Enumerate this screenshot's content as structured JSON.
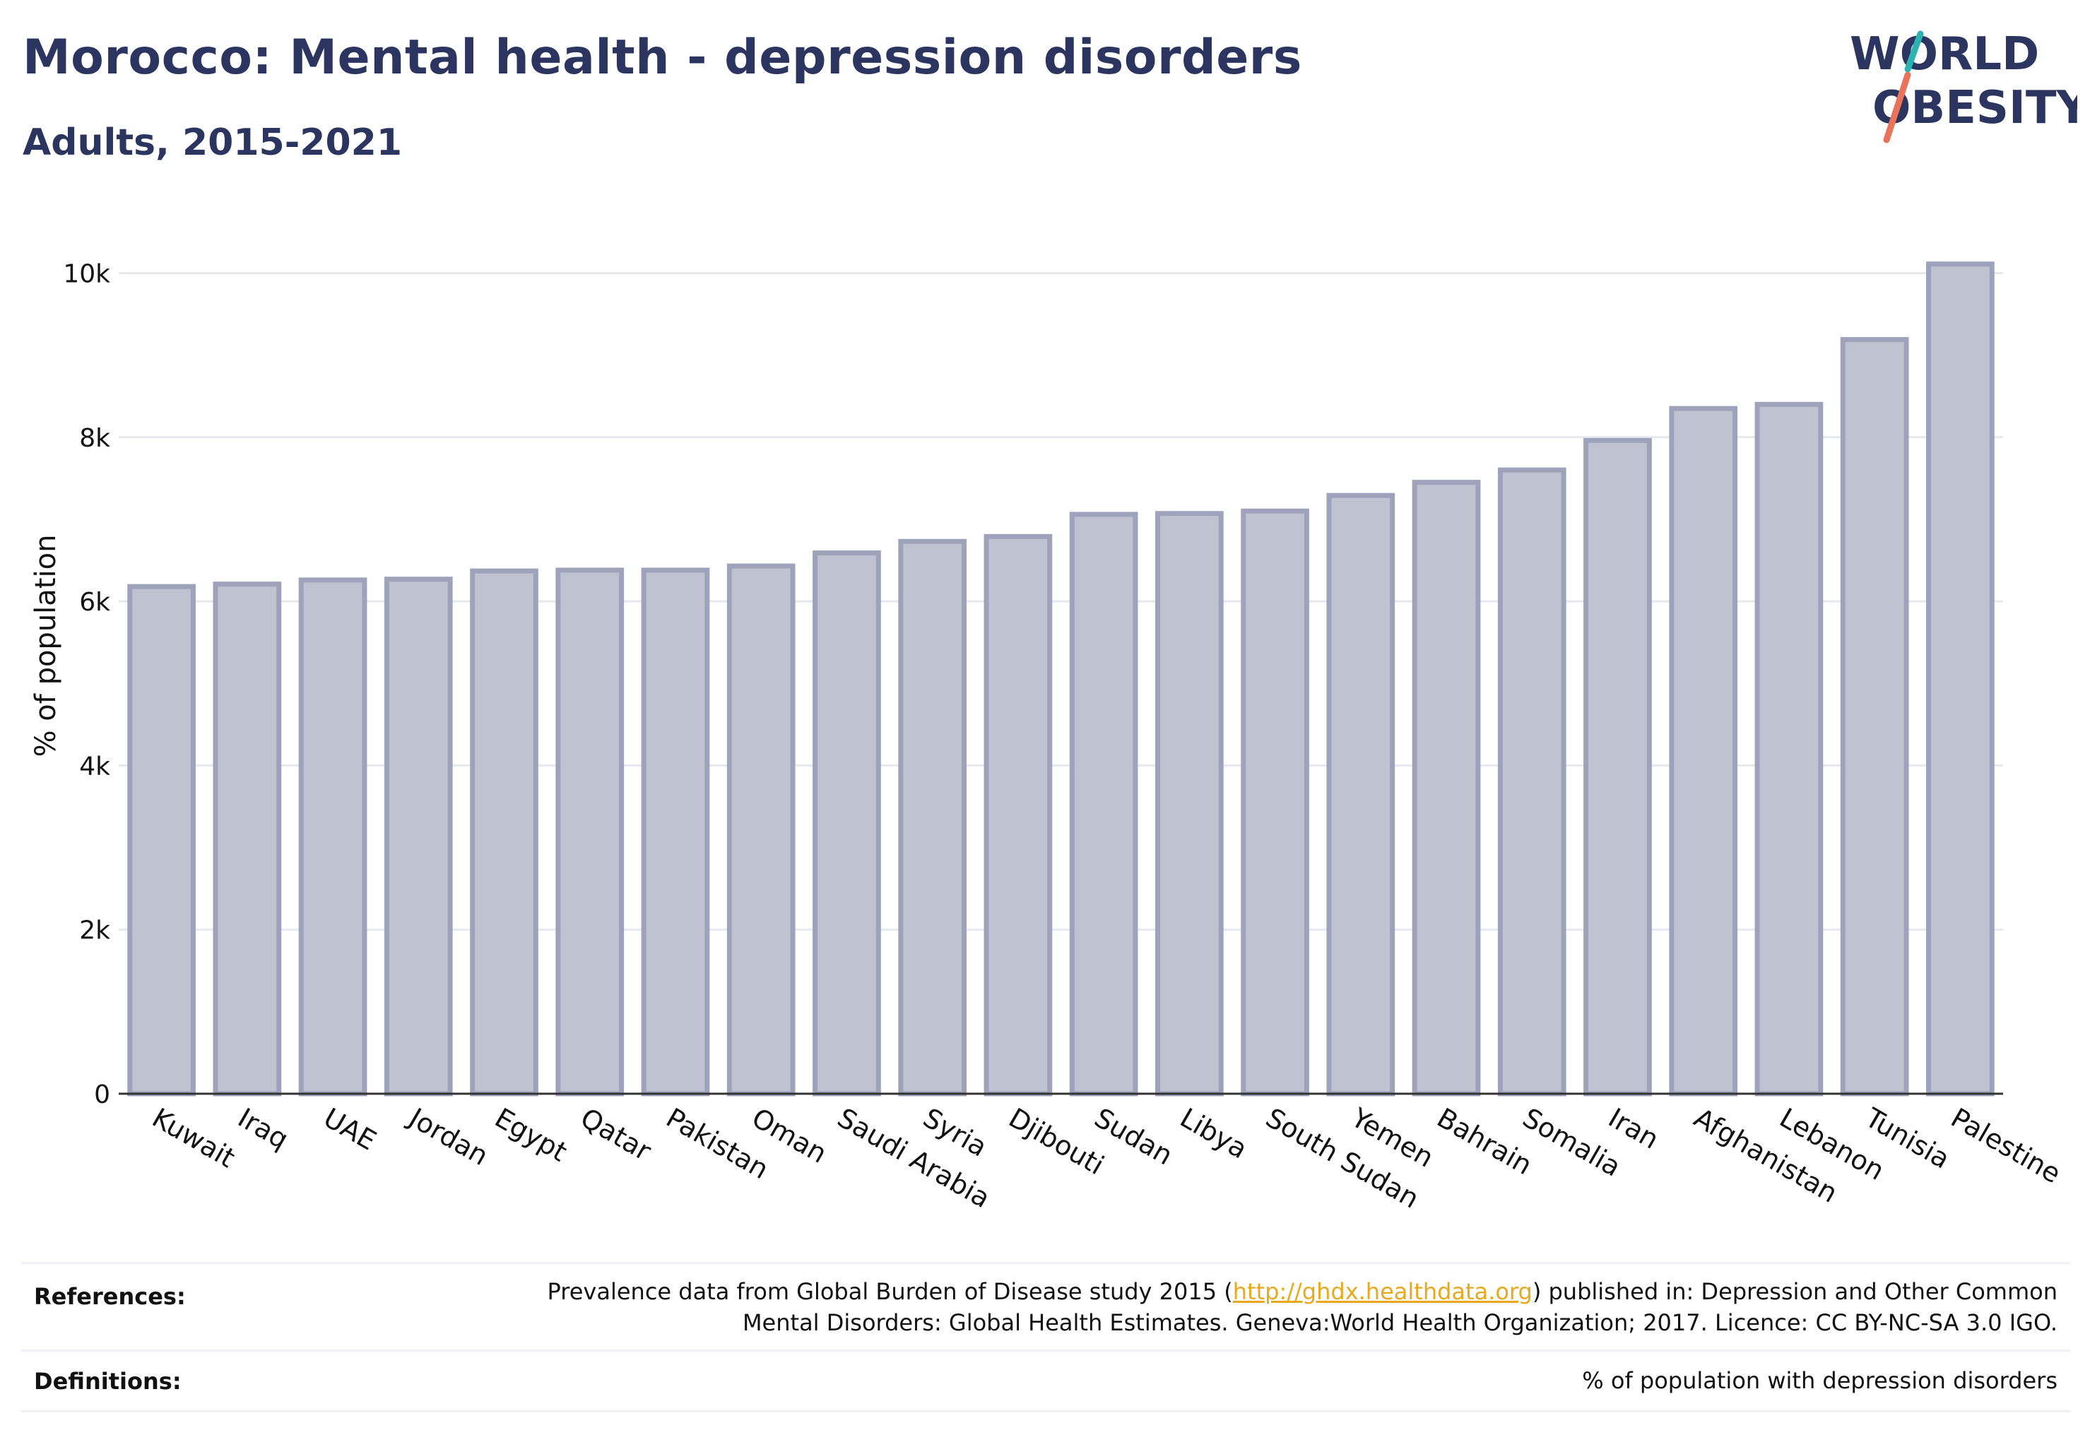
{
  "header": {
    "title": "Morocco: Mental health - depression disorders",
    "subtitle": "Adults, 2015-2021"
  },
  "logo": {
    "line1": "WORLD",
    "line2": "OBESITY",
    "accent_teal": "#2bb3b1",
    "accent_coral": "#e8735a",
    "text_color": "#2b3560"
  },
  "chart_data": {
    "type": "bar",
    "title": "",
    "xlabel": "",
    "ylabel": "% of population",
    "ylim": [
      0,
      10400
    ],
    "yticks": [
      0,
      2000,
      4000,
      6000,
      8000,
      10000
    ],
    "ytick_labels": [
      "0",
      "2k",
      "4k",
      "6k",
      "8k",
      "10k"
    ],
    "grid": true,
    "bar_fill": "#bfc2d1",
    "bar_stroke": "#9ea3bb",
    "categories": [
      "Kuwait",
      "Iraq",
      "UAE",
      "Jordan",
      "Egypt",
      "Qatar",
      "Pakistan",
      "Oman",
      "Saudi Arabia",
      "Syria",
      "Djibouti",
      "Sudan",
      "Libya",
      "South Sudan",
      "Yemen",
      "Bahrain",
      "Somalia",
      "Iran",
      "Afghanistan",
      "Lebanon",
      "Tunisia",
      "Palestine"
    ],
    "values": [
      6180,
      6210,
      6260,
      6270,
      6370,
      6380,
      6380,
      6430,
      6590,
      6730,
      6790,
      7060,
      7070,
      7100,
      7290,
      7450,
      7600,
      7960,
      8350,
      8400,
      9190,
      10110
    ]
  },
  "footer": {
    "references_label": "References:",
    "references_pre": "Prevalence data from Global Burden of Disease study 2015 (",
    "references_link": "http://ghdx.healthdata.org",
    "references_post": ") published in: Depression and Other Common",
    "references_line2": "Mental Disorders: Global Health Estimates. Geneva:World Health Organization; 2017. Licence: CC BY-NC-SA 3.0 IGO.",
    "definitions_label": "Definitions:",
    "definitions_text": "% of population with depression disorders"
  }
}
